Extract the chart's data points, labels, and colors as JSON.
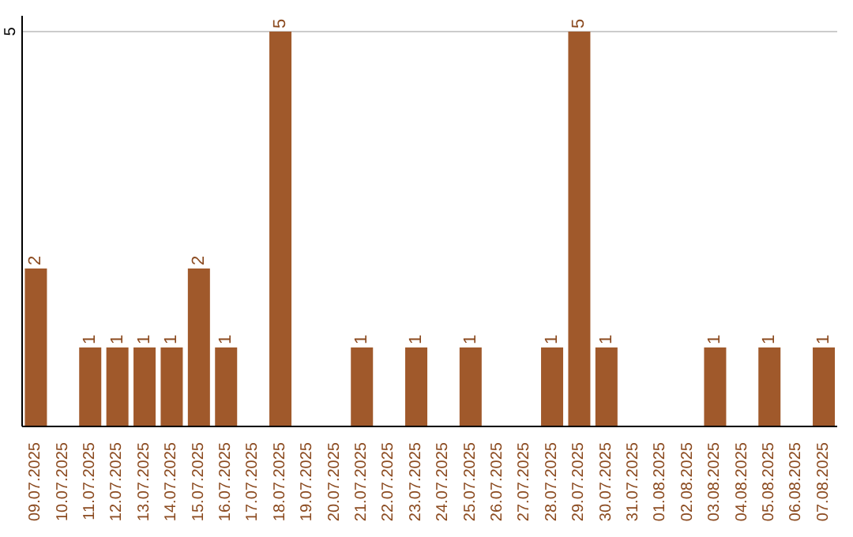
{
  "chart_data": {
    "type": "bar",
    "categories": [
      "09.07.2025",
      "10.07.2025",
      "11.07.2025",
      "12.07.2025",
      "13.07.2025",
      "14.07.2025",
      "15.07.2025",
      "16.07.2025",
      "17.07.2025",
      "18.07.2025",
      "19.07.2025",
      "20.07.2025",
      "21.07.2025",
      "22.07.2025",
      "23.07.2025",
      "24.07.2025",
      "25.07.2025",
      "26.07.2025",
      "27.07.2025",
      "28.07.2025",
      "29.07.2025",
      "30.07.2025",
      "31.07.2025",
      "01.08.2025",
      "02.08.2025",
      "03.08.2025",
      "04.08.2025",
      "05.08.2025",
      "06.08.2025",
      "07.08.2025"
    ],
    "values": [
      2,
      0,
      1,
      1,
      1,
      1,
      2,
      1,
      0,
      5,
      0,
      0,
      1,
      0,
      1,
      0,
      1,
      0,
      0,
      1,
      5,
      1,
      0,
      0,
      0,
      1,
      0,
      1,
      0,
      1
    ],
    "value_labels": [
      "2",
      null,
      "1",
      "1",
      "1",
      "1",
      "2",
      "1",
      null,
      "5",
      null,
      null,
      "1",
      null,
      "1",
      null,
      "1",
      null,
      null,
      "1",
      "5",
      "1",
      null,
      null,
      null,
      "1",
      null,
      "1",
      null,
      "1"
    ],
    "color": "#a0592b",
    "ylim": [
      0,
      5.2
    ],
    "yticks": [
      5
    ],
    "grid": "y"
  }
}
